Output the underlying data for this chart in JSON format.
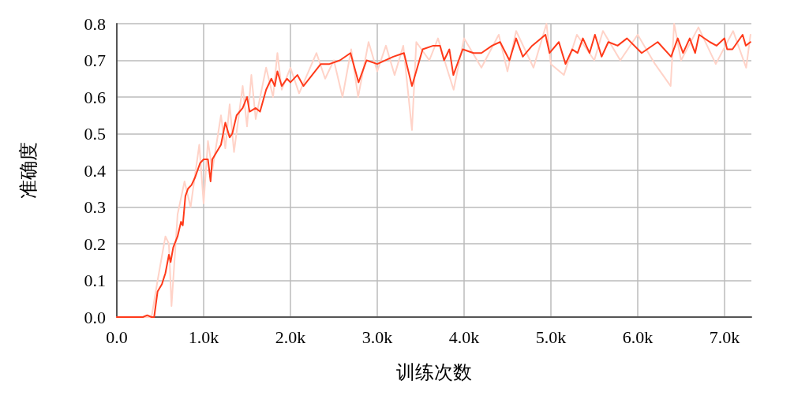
{
  "chart_data": {
    "type": "line",
    "xlabel": "训练次数",
    "ylabel": "准确度",
    "xlim": [
      0,
      7310
    ],
    "ylim": [
      0,
      0.8
    ],
    "xticks": [
      {
        "value": 0,
        "label": "0.0"
      },
      {
        "value": 1000,
        "label": "1.0k"
      },
      {
        "value": 2000,
        "label": "2.0k"
      },
      {
        "value": 3000,
        "label": "3.0k"
      },
      {
        "value": 4000,
        "label": "4.0k"
      },
      {
        "value": 5000,
        "label": "5.0k"
      },
      {
        "value": 6000,
        "label": "6.0k"
      },
      {
        "value": 7000,
        "label": "7.0k"
      }
    ],
    "yticks": [
      {
        "value": 0,
        "label": "0.0"
      },
      {
        "value": 0.1,
        "label": "0.1"
      },
      {
        "value": 0.2,
        "label": "0.2"
      },
      {
        "value": 0.3,
        "label": "0.3"
      },
      {
        "value": 0.4,
        "label": "0.4"
      },
      {
        "value": 0.5,
        "label": "0.5"
      },
      {
        "value": 0.6,
        "label": "0.6"
      },
      {
        "value": 0.7,
        "label": "0.7"
      },
      {
        "value": 0.8,
        "label": "0.8"
      }
    ],
    "grid": true,
    "marker": "none",
    "line_style": "solid",
    "series": [
      {
        "color": "#ffd3c8",
        "x": [
          0,
          400,
          470,
          560,
          600,
          630,
          700,
          780,
          850,
          950,
          1000,
          1050,
          1100,
          1200,
          1250,
          1300,
          1350,
          1450,
          1500,
          1550,
          1600,
          1720,
          1800,
          1850,
          1900,
          2000,
          2100,
          2300,
          2400,
          2500,
          2600,
          2700,
          2780,
          2900,
          3000,
          3100,
          3200,
          3300,
          3400,
          3450,
          3600,
          3700,
          3800,
          3880,
          4000,
          4200,
          4400,
          4500,
          4600,
          4800,
          4950,
          5000,
          5150,
          5300,
          5500,
          5600,
          5800,
          6000,
          6200,
          6380,
          6420,
          6500,
          6700,
          6900,
          7100,
          7250,
          7300
        ],
        "values": [
          0,
          0,
          0.1,
          0.22,
          0.2,
          0.03,
          0.28,
          0.37,
          0.3,
          0.47,
          0.31,
          0.48,
          0.4,
          0.55,
          0.46,
          0.58,
          0.45,
          0.63,
          0.52,
          0.66,
          0.54,
          0.68,
          0.6,
          0.72,
          0.62,
          0.68,
          0.61,
          0.72,
          0.65,
          0.7,
          0.6,
          0.73,
          0.6,
          0.75,
          0.67,
          0.74,
          0.66,
          0.74,
          0.51,
          0.75,
          0.7,
          0.76,
          0.68,
          0.62,
          0.76,
          0.68,
          0.77,
          0.67,
          0.78,
          0.68,
          0.8,
          0.69,
          0.66,
          0.77,
          0.7,
          0.78,
          0.7,
          0.77,
          0.69,
          0.63,
          0.8,
          0.7,
          0.79,
          0.69,
          0.78,
          0.68,
          0.77
        ]
      },
      {
        "color": "#ff3a1a",
        "x": [
          0,
          300,
          350,
          400,
          430,
          470,
          520,
          560,
          600,
          620,
          650,
          700,
          740,
          760,
          790,
          820,
          860,
          900,
          930,
          960,
          1000,
          1050,
          1080,
          1100,
          1200,
          1250,
          1300,
          1330,
          1380,
          1450,
          1500,
          1530,
          1600,
          1650,
          1720,
          1780,
          1820,
          1850,
          1900,
          1960,
          2000,
          2080,
          2150,
          2250,
          2350,
          2450,
          2570,
          2692,
          2785,
          2877,
          3000,
          3185,
          3308,
          3400,
          3523,
          3646,
          3723,
          3770,
          3831,
          3877,
          3938,
          3985,
          4108,
          4200,
          4323,
          4415,
          4523,
          4600,
          4677,
          4785,
          4938,
          4985,
          5092,
          5169,
          5246,
          5308,
          5369,
          5446,
          5508,
          5585,
          5662,
          5769,
          5877,
          6046,
          6231,
          6385,
          6462,
          6523,
          6600,
          6662,
          6708,
          6831,
          6908,
          7000,
          7031,
          7092,
          7209,
          7246,
          7300
        ],
        "values": [
          0,
          0,
          0.005,
          0,
          0,
          0.07,
          0.09,
          0.12,
          0.17,
          0.15,
          0.19,
          0.22,
          0.26,
          0.25,
          0.33,
          0.35,
          0.36,
          0.38,
          0.4,
          0.42,
          0.43,
          0.43,
          0.37,
          0.43,
          0.47,
          0.53,
          0.49,
          0.5,
          0.55,
          0.57,
          0.6,
          0.56,
          0.57,
          0.56,
          0.62,
          0.65,
          0.63,
          0.67,
          0.63,
          0.65,
          0.64,
          0.66,
          0.63,
          0.66,
          0.69,
          0.69,
          0.7,
          0.72,
          0.64,
          0.7,
          0.69,
          0.71,
          0.72,
          0.63,
          0.73,
          0.74,
          0.74,
          0.7,
          0.73,
          0.66,
          0.7,
          0.73,
          0.72,
          0.72,
          0.74,
          0.75,
          0.7,
          0.76,
          0.71,
          0.74,
          0.77,
          0.72,
          0.75,
          0.69,
          0.73,
          0.72,
          0.76,
          0.72,
          0.77,
          0.71,
          0.75,
          0.74,
          0.76,
          0.72,
          0.75,
          0.71,
          0.76,
          0.72,
          0.76,
          0.72,
          0.77,
          0.75,
          0.74,
          0.76,
          0.73,
          0.73,
          0.77,
          0.74,
          0.75
        ]
      }
    ]
  }
}
